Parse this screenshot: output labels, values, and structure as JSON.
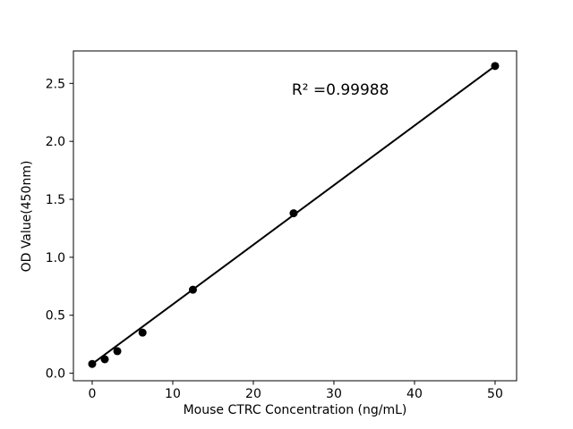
{
  "figure": {
    "background": "#ffffff"
  },
  "chart_data": {
    "type": "scatter",
    "title": "",
    "xlabel": "Mouse CTRC Concentration (ng/mL)",
    "ylabel": "OD Value(450nm)",
    "annotation": {
      "text": "R² =0.99988",
      "x": 30.8,
      "y": 2.44
    },
    "x": [
      0,
      1.56,
      3.12,
      6.25,
      12.5,
      25,
      50
    ],
    "y": [
      0.08,
      0.12,
      0.19,
      0.35,
      0.72,
      1.38,
      2.65
    ],
    "fit_line": {
      "x": [
        0,
        50
      ],
      "y": [
        0.08,
        2.65
      ]
    },
    "xlim": [
      -2.33,
      52.67
    ],
    "ylim": [
      -0.065,
      2.78
    ],
    "xticks": [
      0,
      10,
      20,
      30,
      40,
      50
    ],
    "xtick_labels": [
      "0",
      "10",
      "20",
      "30",
      "40",
      "50"
    ],
    "yticks": [
      0,
      0.5,
      1,
      1.5,
      2,
      2.5
    ],
    "ytick_labels": [
      "0.0",
      "0.5",
      "1.0",
      "1.5",
      "2.0",
      "2.5"
    ],
    "grid": false,
    "legend": null,
    "marker": {
      "shape": "circle",
      "radius": 4.5,
      "color": "#000000"
    },
    "line_color": "#000000",
    "axis_color": "#000000"
  }
}
